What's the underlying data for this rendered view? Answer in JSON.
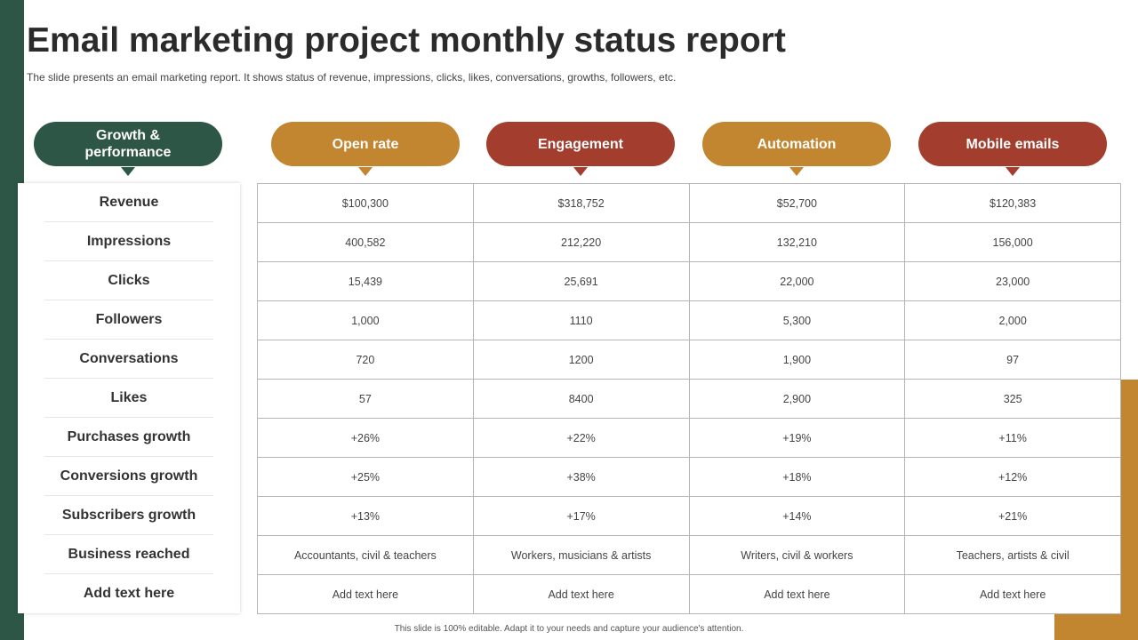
{
  "title": "Email marketing project monthly status report",
  "subtitle": "The slide presents an email marketing report. It shows status of revenue, impressions, clicks, likes, conversations, growths, followers, etc.",
  "colors": {
    "green": "#2e5646",
    "gold": "#c28530",
    "red": "#a33d2e"
  },
  "headers": {
    "row_header": "Growth & performance",
    "columns": [
      "Open rate",
      "Engagement",
      "Automation",
      "Mobile emails"
    ]
  },
  "rows": [
    {
      "label": "Revenue",
      "values": [
        "$100,300",
        "$318,752",
        "$52,700",
        "$120,383"
      ]
    },
    {
      "label": "Impressions",
      "values": [
        "400,582",
        "212,220",
        "132,210",
        "156,000"
      ]
    },
    {
      "label": "Clicks",
      "values": [
        "15,439",
        "25,691",
        "22,000",
        "23,000"
      ]
    },
    {
      "label": "Followers",
      "values": [
        "1,000",
        "1110",
        "5,300",
        "2,000"
      ]
    },
    {
      "label": "Conversations",
      "values": [
        "720",
        "1200",
        "1,900",
        "97"
      ]
    },
    {
      "label": "Likes",
      "values": [
        "57",
        "8400",
        "2,900",
        "325"
      ]
    },
    {
      "label": "Purchases growth",
      "values": [
        "+26%",
        "+22%",
        "+19%",
        "+11%"
      ]
    },
    {
      "label": "Conversions growth",
      "values": [
        "+25%",
        "+38%",
        "+18%",
        "+12%"
      ]
    },
    {
      "label": "Subscribers growth",
      "values": [
        "+13%",
        "+17%",
        "+14%",
        "+21%"
      ]
    },
    {
      "label": "Business reached",
      "values": [
        "Accountants, civil & teachers",
        "Workers, musicians & artists",
        "Writers, civil & workers",
        "Teachers, artists & civil"
      ]
    },
    {
      "label": "Add text here",
      "values": [
        "Add text here",
        "Add text here",
        "Add text here",
        "Add text here"
      ]
    }
  ],
  "footer": "This slide is 100% editable. Adapt it to your needs and capture your audience's attention."
}
